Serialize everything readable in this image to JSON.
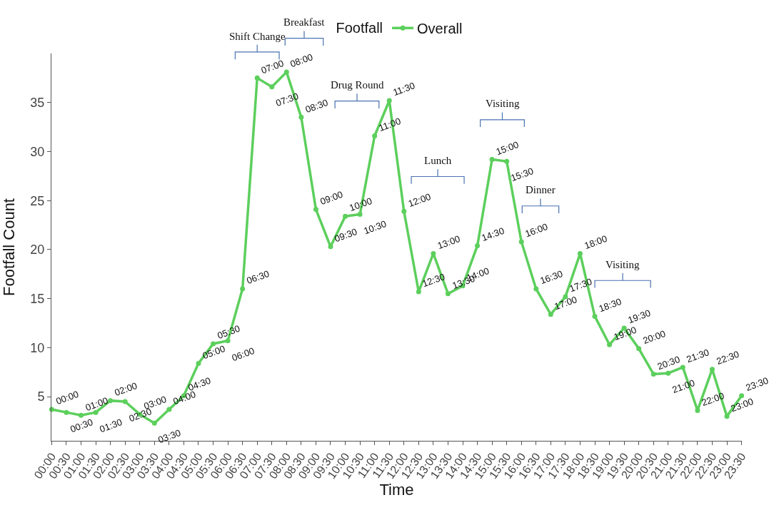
{
  "chart_data": {
    "type": "line",
    "xlabel": "Time",
    "ylabel": "Footfall Count",
    "legend_title": "Footfall",
    "legend": "top",
    "marker": "circle",
    "line_style": "solid",
    "categories": [
      "00:00",
      "00:30",
      "01:00",
      "01:30",
      "02:00",
      "02:30",
      "03:00",
      "03:30",
      "04:00",
      "04:30",
      "05:00",
      "05:30",
      "06:00",
      "06:30",
      "07:00",
      "07:30",
      "08:00",
      "08:30",
      "09:00",
      "09:30",
      "10:00",
      "10:30",
      "11:00",
      "11:30",
      "12:00",
      "12:30",
      "13:00",
      "13:30",
      "14:00",
      "14:30",
      "15:00",
      "15:30",
      "16:00",
      "16:30",
      "17:00",
      "17:30",
      "18:00",
      "18:30",
      "19:00",
      "19:30",
      "20:00",
      "20:30",
      "21:00",
      "21:30",
      "22:00",
      "22:30",
      "23:00",
      "23:30"
    ],
    "ylim": [
      0.5,
      40
    ],
    "yticks": [
      5,
      10,
      15,
      20,
      25,
      30,
      35
    ],
    "series": [
      {
        "name": "Overall",
        "color": "#5ccf5c",
        "values": [
          3.7,
          3.4,
          3.1,
          3.4,
          4.6,
          4.5,
          3.2,
          2.3,
          3.7,
          5.1,
          8.4,
          10.4,
          10.7,
          16.0,
          37.5,
          36.6,
          38.1,
          33.5,
          24.1,
          20.3,
          23.4,
          23.6,
          31.6,
          35.2,
          23.9,
          15.7,
          19.6,
          15.5,
          16.3,
          20.4,
          29.2,
          29.0,
          20.8,
          16.0,
          13.4,
          15.2,
          19.6,
          13.2,
          10.3,
          12.0,
          9.9,
          7.3,
          7.4,
          8.0,
          3.6,
          7.8,
          3.0,
          5.1
        ]
      }
    ],
    "annotations": [
      "Shift Change",
      "Breakfast",
      "Drug Round",
      "Lunch",
      "Visiting",
      "Dinner",
      "Visiting",
      {
        "text": "00:00",
        "x": "00:00",
        "y": 3.7
      },
      {
        "text": "00:30",
        "x": "00:30",
        "y": 3.4
      },
      {
        "text": "01:00",
        "x": "01:00",
        "y": 3.1
      },
      {
        "text": "01:30",
        "x": "01:30",
        "y": 3.4
      },
      {
        "text": "02:00",
        "x": "02:00",
        "y": 4.6
      },
      {
        "text": "02:30",
        "x": "02:30",
        "y": 4.5
      },
      {
        "text": "03:00",
        "x": "03:00",
        "y": 3.2
      },
      {
        "text": "03:30",
        "x": "03:30",
        "y": 2.3
      },
      {
        "text": "04:00",
        "x": "04:00",
        "y": 3.7
      },
      {
        "text": "04:30",
        "x": "04:30",
        "y": 5.1
      },
      {
        "text": "05:00",
        "x": "05:00",
        "y": 8.4
      },
      {
        "text": "05:30",
        "x": "05:30",
        "y": 10.4
      },
      {
        "text": "06:00",
        "x": "06:00",
        "y": 10.7
      },
      {
        "text": "06:30",
        "x": "06:30",
        "y": 16.0
      },
      {
        "text": "07:00",
        "x": "07:00",
        "y": 37.5
      },
      {
        "text": "07:30",
        "x": "07:30",
        "y": 36.6
      },
      {
        "text": "08:00",
        "x": "08:00",
        "y": 38.1
      },
      {
        "text": "08:30",
        "x": "08:30",
        "y": 33.5
      },
      {
        "text": "09:00",
        "x": "09:00",
        "y": 24.1
      },
      {
        "text": "09:30",
        "x": "09:30",
        "y": 20.3
      },
      {
        "text": "10:00",
        "x": "10:00",
        "y": 23.4
      },
      {
        "text": "10:30",
        "x": "10:30",
        "y": 23.6
      },
      {
        "text": "11:00",
        "x": "11:00",
        "y": 31.6
      },
      {
        "text": "11:30",
        "x": "11:30",
        "y": 35.2
      },
      {
        "text": "12:00",
        "x": "12:00",
        "y": 23.9
      },
      {
        "text": "12:30",
        "x": "12:30",
        "y": 15.7
      },
      {
        "text": "13:00",
        "x": "13:00",
        "y": 19.6
      },
      {
        "text": "13:30",
        "x": "13:30",
        "y": 15.5
      },
      {
        "text": "14:00",
        "x": "14:00",
        "y": 16.3
      },
      {
        "text": "14:30",
        "x": "14:30",
        "y": 20.4
      },
      {
        "text": "15:00",
        "x": "15:00",
        "y": 29.2
      },
      {
        "text": "15:30",
        "x": "15:30",
        "y": 29.0
      },
      {
        "text": "16:00",
        "x": "16:00",
        "y": 20.8
      },
      {
        "text": "16:30",
        "x": "16:30",
        "y": 16.0
      },
      {
        "text": "17:00",
        "x": "17:00",
        "y": 13.4
      },
      {
        "text": "17:30",
        "x": "17:30",
        "y": 15.2
      },
      {
        "text": "18:00",
        "x": "18:00",
        "y": 19.6
      },
      {
        "text": "18:30",
        "x": "18:30",
        "y": 13.2
      },
      {
        "text": "19:00",
        "x": "19:00",
        "y": 10.3
      },
      {
        "text": "19:30",
        "x": "19:30",
        "y": 12.0
      },
      {
        "text": "20:00",
        "x": "20:00",
        "y": 9.9
      },
      {
        "text": "20:30",
        "x": "20:30",
        "y": 7.3
      },
      {
        "text": "21:00",
        "x": "21:00",
        "y": 7.4
      },
      {
        "text": "21:30",
        "x": "21:30",
        "y": 8.0
      },
      {
        "text": "22:00",
        "x": "22:00",
        "y": 3.6
      },
      {
        "text": "22:30",
        "x": "22:30",
        "y": 7.8
      },
      {
        "text": "23:00",
        "x": "23:00",
        "y": 3.0
      },
      {
        "text": "23:30",
        "x": "23:30",
        "y": 5.1
      }
    ]
  }
}
